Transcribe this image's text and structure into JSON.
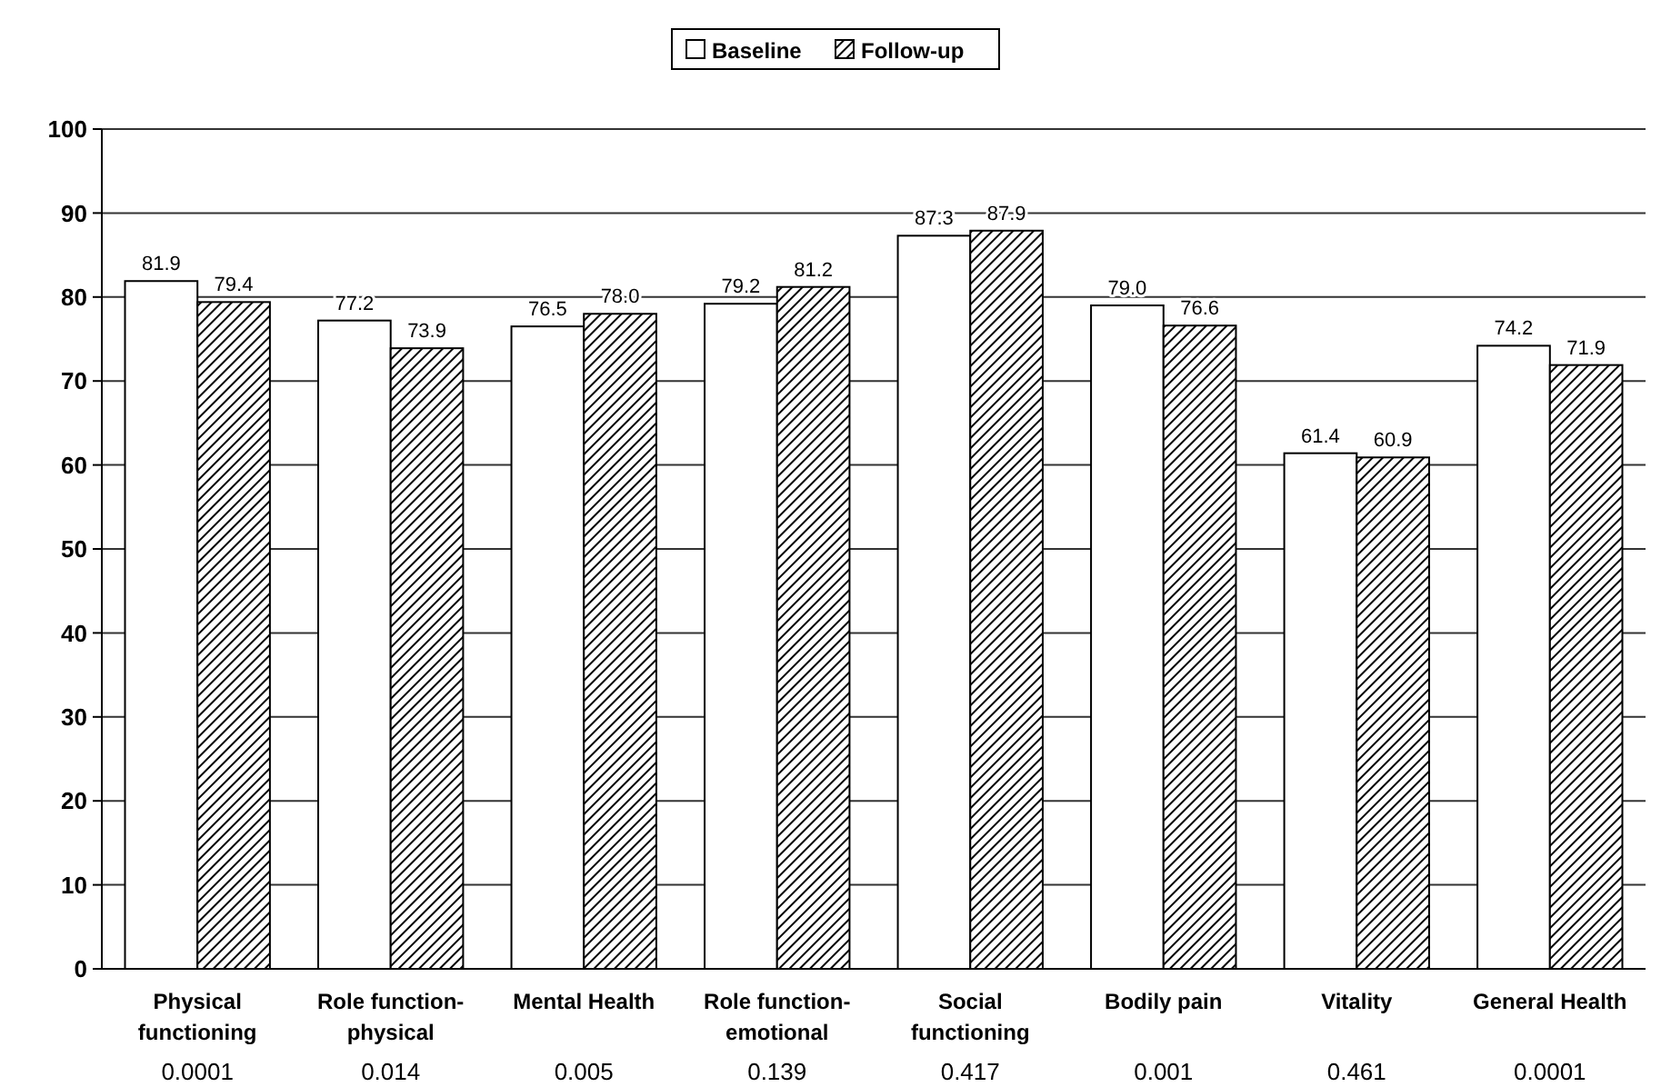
{
  "chart_data": {
    "type": "bar",
    "categories": [
      "Physical\nfunctioning",
      "Role function-\nphysical",
      "Mental Health",
      "Role function-\nemotional",
      "Social\nfunctioning",
      "Bodily  pain",
      "Vitality",
      "General Health"
    ],
    "series": [
      {
        "name": "Baseline",
        "color": "#ffffff",
        "values": [
          81.9,
          77.2,
          76.5,
          79.2,
          87.3,
          79.0,
          61.4,
          74.2
        ],
        "value_labels": [
          "81.9",
          "77.2",
          "76.5",
          "79.2",
          "87.3",
          "79.0",
          "61.4",
          "74.2"
        ]
      },
      {
        "name": "Follow-up",
        "color": "#000000",
        "values": [
          79.4,
          73.9,
          78.0,
          81.2,
          87.9,
          76.6,
          60.9,
          71.9
        ],
        "value_labels": [
          "79.4",
          "73.9",
          "78.0",
          "81.2",
          "87.9",
          "76.6",
          "60.9",
          "71.9"
        ]
      }
    ],
    "ylim": [
      0,
      100
    ],
    "yticks": [
      0,
      10,
      20,
      30,
      40,
      50,
      60,
      70,
      80,
      90,
      100
    ],
    "grid": "y",
    "legend": "top",
    "annotations": [
      "0.0001",
      "0.014",
      "0.005",
      "0.139",
      "0.417",
      "0.001",
      "0.461",
      "0.0001"
    ]
  }
}
